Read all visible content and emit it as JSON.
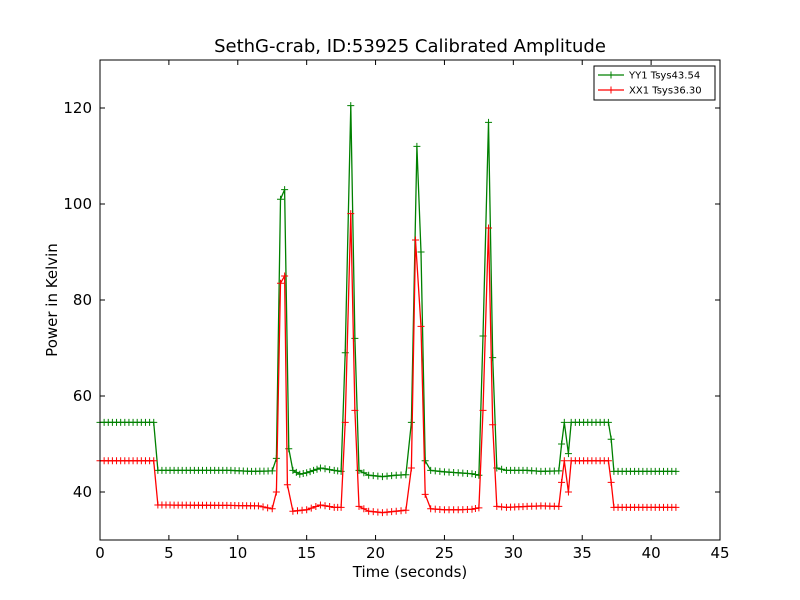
{
  "chart_data": {
    "type": "line",
    "title": "SethG-crab, ID:53925 Calibrated Amplitude",
    "xlabel": "Time (seconds)",
    "ylabel": "Power in Kelvin",
    "xlim": [
      0,
      45
    ],
    "ylim": [
      30,
      130
    ],
    "xticks": [
      0,
      5,
      10,
      15,
      20,
      25,
      30,
      35,
      40,
      45
    ],
    "yticks": [
      40,
      60,
      80,
      100,
      120
    ],
    "grid": false,
    "legend_position": "top-right",
    "marker": "+",
    "series": [
      {
        "name": "YY1 Tsys43.54",
        "color": "#008000",
        "points": [
          [
            0,
            54.5
          ],
          [
            3.9,
            54.5
          ],
          [
            4.2,
            44.5
          ],
          [
            9.5,
            44.5
          ],
          [
            11.0,
            44.3
          ],
          [
            12.5,
            44.4
          ],
          [
            12.8,
            47.0
          ],
          [
            13.1,
            101.0
          ],
          [
            13.4,
            103.0
          ],
          [
            13.7,
            49.0
          ],
          [
            14.0,
            44.5
          ],
          [
            14.5,
            43.7
          ],
          [
            15.0,
            44.0
          ],
          [
            15.5,
            44.5
          ],
          [
            16.0,
            45.0
          ],
          [
            17.0,
            44.5
          ],
          [
            17.5,
            44.3
          ],
          [
            17.8,
            69.0
          ],
          [
            18.2,
            120.5
          ],
          [
            18.5,
            72.0
          ],
          [
            18.8,
            44.5
          ],
          [
            19.5,
            43.5
          ],
          [
            20.5,
            43.2
          ],
          [
            21.5,
            43.5
          ],
          [
            22.2,
            43.6
          ],
          [
            22.6,
            54.5
          ],
          [
            23.0,
            112.0
          ],
          [
            23.3,
            90.0
          ],
          [
            23.6,
            46.5
          ],
          [
            24.0,
            44.5
          ],
          [
            25.0,
            44.2
          ],
          [
            26.0,
            44.0
          ],
          [
            27.0,
            43.8
          ],
          [
            27.5,
            43.5
          ],
          [
            27.8,
            72.5
          ],
          [
            28.2,
            117.0
          ],
          [
            28.5,
            68.0
          ],
          [
            28.8,
            45.0
          ],
          [
            29.5,
            44.5
          ],
          [
            31.0,
            44.5
          ],
          [
            32.0,
            44.3
          ],
          [
            33.3,
            44.4
          ],
          [
            33.5,
            50.0
          ],
          [
            33.7,
            54.5
          ],
          [
            34.0,
            48.0
          ],
          [
            34.2,
            54.5
          ],
          [
            36.9,
            54.5
          ],
          [
            37.1,
            51.0
          ],
          [
            37.3,
            44.3
          ],
          [
            41.8,
            44.3
          ]
        ]
      },
      {
        "name": "XX1 Tsys36.30",
        "color": "#ff0000",
        "points": [
          [
            0,
            46.5
          ],
          [
            3.9,
            46.5
          ],
          [
            4.2,
            37.3
          ],
          [
            9.5,
            37.2
          ],
          [
            11.5,
            37.1
          ],
          [
            12.5,
            36.5
          ],
          [
            12.8,
            40.0
          ],
          [
            13.1,
            83.5
          ],
          [
            13.4,
            85.0
          ],
          [
            13.6,
            41.5
          ],
          [
            14.0,
            36.0
          ],
          [
            15.0,
            36.3
          ],
          [
            16.0,
            37.3
          ],
          [
            17.0,
            36.8
          ],
          [
            17.5,
            36.8
          ],
          [
            17.8,
            54.5
          ],
          [
            18.2,
            98.0
          ],
          [
            18.5,
            57.0
          ],
          [
            18.8,
            37.0
          ],
          [
            19.5,
            36.0
          ],
          [
            20.5,
            35.7
          ],
          [
            21.5,
            36.0
          ],
          [
            22.2,
            36.2
          ],
          [
            22.6,
            45.0
          ],
          [
            22.9,
            92.5
          ],
          [
            23.3,
            74.5
          ],
          [
            23.6,
            39.5
          ],
          [
            24.0,
            36.5
          ],
          [
            25.0,
            36.3
          ],
          [
            26.0,
            36.3
          ],
          [
            27.0,
            36.4
          ],
          [
            27.5,
            36.7
          ],
          [
            27.8,
            57.0
          ],
          [
            28.2,
            95.0
          ],
          [
            28.5,
            54.0
          ],
          [
            28.8,
            37.0
          ],
          [
            29.5,
            36.8
          ],
          [
            31.0,
            37.0
          ],
          [
            32.0,
            37.1
          ],
          [
            33.3,
            37.0
          ],
          [
            33.5,
            42.0
          ],
          [
            33.7,
            46.5
          ],
          [
            34.0,
            40.0
          ],
          [
            34.2,
            46.5
          ],
          [
            36.9,
            46.5
          ],
          [
            37.1,
            42.0
          ],
          [
            37.3,
            36.8
          ],
          [
            41.8,
            36.8
          ]
        ]
      }
    ]
  }
}
